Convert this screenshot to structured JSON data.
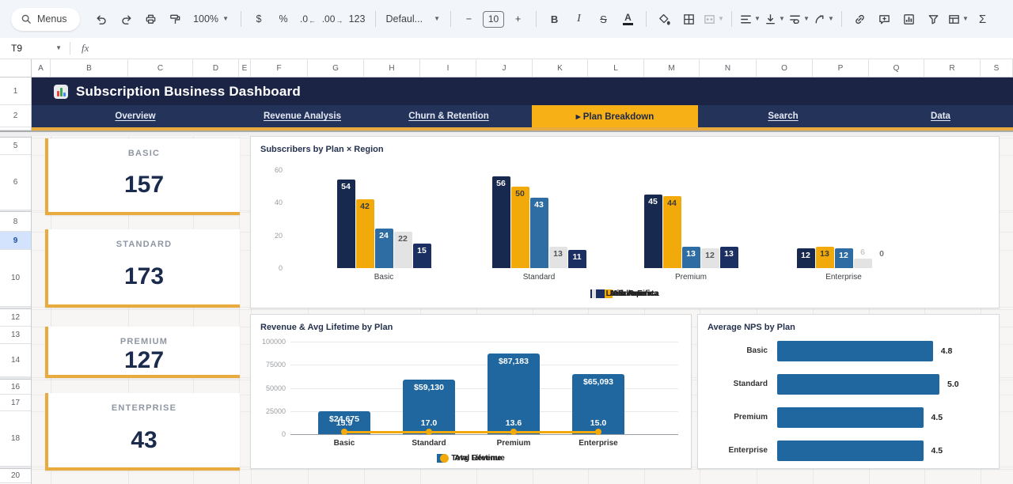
{
  "toolbar": {
    "menus_label": "Menus",
    "zoom_value": "100%",
    "currency": "$",
    "percent": "%",
    "decimal_decrease": ".0",
    "decimal_increase": ".00",
    "number_format": "123",
    "font_name": "Defaul...",
    "font_size": "10",
    "minus": "−",
    "plus": "+",
    "bold": "B",
    "italic": "I",
    "strikethrough": "S",
    "text_color": "A",
    "sum": "Σ"
  },
  "formula_bar": {
    "cell_ref": "T9",
    "fx_label": "fx"
  },
  "grid": {
    "columns": [
      "A",
      "B",
      "C",
      "D",
      "E",
      "F",
      "G",
      "H",
      "I",
      "J",
      "K",
      "L",
      "M",
      "N",
      "O",
      "P",
      "Q",
      "R",
      "S"
    ],
    "row_labels": [
      "1",
      "2",
      "",
      "4",
      "",
      "5",
      "6",
      "",
      "8",
      "9",
      "10",
      "",
      "12",
      "13",
      "14",
      "",
      "16",
      "17",
      "18",
      "",
      "20"
    ],
    "selected_row": "9"
  },
  "dashboard": {
    "title": "Subscription Business Dashboard",
    "tabs": [
      {
        "label": "Overview",
        "active": false
      },
      {
        "label": "Revenue Analysis",
        "active": false
      },
      {
        "label": "Churn & Retention",
        "active": false
      },
      {
        "label": "▸ Plan Breakdown",
        "active": true
      },
      {
        "label": "Search",
        "active": false
      },
      {
        "label": "Data",
        "active": false
      }
    ],
    "kpis": [
      {
        "label": "BASIC",
        "value": "157"
      },
      {
        "label": "STANDARD",
        "value": "173"
      },
      {
        "label": "PREMIUM",
        "value": "127"
      },
      {
        "label": "ENTERPRISE",
        "value": "43"
      }
    ]
  },
  "colors": {
    "banner_navy": "#1b2444",
    "nav_navy": "#243359",
    "accent_gold": "#e9ab3e",
    "tab_yellow": "#f7b015",
    "value_navy": "#1b2b4d",
    "series_navy": "#17294e",
    "series_yellow": "#f2a90a",
    "series_blue": "#2e6da4",
    "series_gray": "#e3e3e3",
    "series_navy2": "#1b2f63",
    "revenue_blue": "#20679f"
  },
  "chart_data": [
    {
      "type": "bar",
      "title": "Subscribers by Plan × Region",
      "categories": [
        "Basic",
        "Standard",
        "Premium",
        "Enterprise"
      ],
      "series": [
        {
          "name": "North America",
          "color": "#17294e",
          "label_color": "#ffffff",
          "values": [
            54,
            56,
            45,
            12
          ]
        },
        {
          "name": "Europe",
          "color": "#f2a90a",
          "label_color": "#3b3b3b",
          "values": [
            42,
            50,
            44,
            13
          ]
        },
        {
          "name": "Asia Pacific",
          "color": "#2e6da4",
          "label_color": "#ffffff",
          "values": [
            24,
            43,
            13,
            12
          ]
        },
        {
          "name": "Latin America",
          "color": "#e3e3e3",
          "label_color": "#555555",
          "values": [
            22,
            13,
            12,
            6
          ]
        },
        {
          "name": "Middle East",
          "color": "#1b2f63",
          "label_color": "#ffffff",
          "values": [
            15,
            11,
            13,
            0
          ]
        }
      ],
      "ylim": [
        0,
        60
      ],
      "yticks": [
        0,
        20,
        40,
        60
      ],
      "legend_position": "bottom",
      "grid": false
    },
    {
      "type": "bar",
      "title": "Revenue & Avg Lifetime by Plan",
      "categories": [
        "Basic",
        "Standard",
        "Premium",
        "Enterprise"
      ],
      "series": [
        {
          "name": "Total Revenue",
          "type": "bar",
          "color": "#20679f",
          "values": [
            24675,
            59130,
            87183,
            65093
          ],
          "labels": [
            "$24,675",
            "$59,130",
            "$87,183",
            "$65,093"
          ]
        },
        {
          "name": "Avg Lifetime",
          "type": "line",
          "color": "#f2a90a",
          "values": [
            15.9,
            17.0,
            13.6,
            15.0
          ],
          "labels": [
            "15.9",
            "17.0",
            "13.6",
            "15.0"
          ]
        }
      ],
      "ylim": [
        0,
        100000
      ],
      "yticks": [
        "0",
        "25000",
        "50000",
        "75000",
        "100000"
      ],
      "legend_position": "bottom",
      "grid": true
    },
    {
      "type": "bar-horizontal",
      "title": "Average NPS by Plan",
      "categories": [
        "Basic",
        "Standard",
        "Premium",
        "Enterprise"
      ],
      "values": [
        4.8,
        5.0,
        4.5,
        4.5
      ],
      "labels": [
        "4.8",
        "5.0",
        "4.5",
        "4.5"
      ],
      "xlim": [
        0,
        5
      ]
    }
  ]
}
